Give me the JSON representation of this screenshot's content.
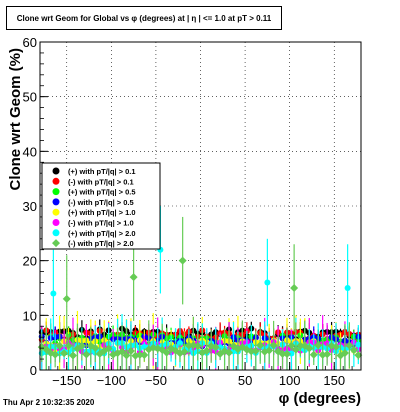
{
  "chart_data": {
    "type": "scatter",
    "title": "Clone wrt Geom for Global vs φ (degrees) at | η | <= 1.0 at pT > 0.11",
    "xlabel": "φ (degrees)",
    "ylabel": "Clone wrt Geom (%)",
    "xlim": [
      -180,
      180
    ],
    "ylim": [
      0,
      60
    ],
    "x_ticks": [
      -150,
      -100,
      -50,
      0,
      50,
      100,
      150
    ],
    "y_ticks": [
      0,
      10,
      20,
      30,
      40,
      50,
      60
    ],
    "x_tick_labels": [
      "−150",
      "−100",
      "−50",
      "0",
      "50",
      "100",
      "150"
    ],
    "y_tick_labels": [
      "0",
      "10",
      "20",
      "30",
      "40",
      "50",
      "60"
    ],
    "grid": true,
    "legend_position": "middle-left",
    "series": [
      {
        "name": "(+) with pT/|q| > 0.1",
        "color": "#000000",
        "marker": "circle",
        "level": 6.6
      },
      {
        "name": "(-) with pT/|q| > 0.1",
        "color": "#ff0000",
        "marker": "circle",
        "level": 6.3
      },
      {
        "name": "(+) with pT/|q| > 0.5",
        "color": "#00ff00",
        "marker": "circle",
        "level": 5.5
      },
      {
        "name": "(-) with pT/|q| > 0.5",
        "color": "#0000ff",
        "marker": "circle",
        "level": 5.2
      },
      {
        "name": "(+) with pT/|q| > 1.0",
        "color": "#ffff00",
        "marker": "circle",
        "level": 4.5
      },
      {
        "name": "(-) with pT/|q| > 1.0",
        "color": "#ff00ff",
        "marker": "circle",
        "level": 4.2
      },
      {
        "name": "(+) with pT/|q| > 2.0",
        "color": "#00ffff",
        "marker": "circle",
        "level": 4.0
      },
      {
        "name": "(-) with pT/|q| > 2.0",
        "color": "#66cc55",
        "marker": "diamond",
        "level": 3.6
      }
    ],
    "highlighted_points": [
      {
        "series": 6,
        "x": -165,
        "y": 14
      },
      {
        "series": 6,
        "x": -45,
        "y": 22
      },
      {
        "series": 7,
        "x": -75,
        "y": 17
      },
      {
        "series": 7,
        "x": -20,
        "y": 20
      },
      {
        "series": 6,
        "x": 75,
        "y": 16
      },
      {
        "series": 7,
        "x": 105,
        "y": 15
      },
      {
        "series": 6,
        "x": 165,
        "y": 15
      },
      {
        "series": 7,
        "x": -150,
        "y": 13
      }
    ]
  },
  "footer": "Thu Apr  2 10:32:35 2020"
}
